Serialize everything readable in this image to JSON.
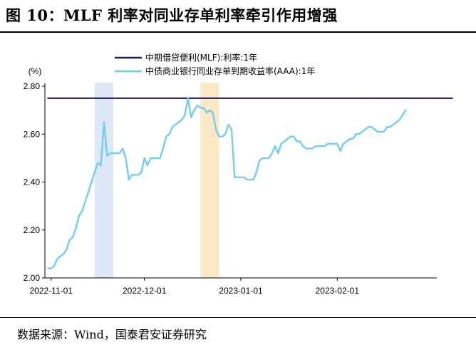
{
  "figure": {
    "title": "图 10：MLF 利率对同业存单利率牵引作用增强",
    "source": "数据来源：Wind，国泰君安证券研究"
  },
  "chart_data": {
    "type": "line",
    "ylabel": "(%)",
    "ylim": [
      2.0,
      2.8
    ],
    "yticks": [
      2.0,
      2.2,
      2.4,
      2.6,
      2.8
    ],
    "ytick_labels": [
      "2.00",
      "2.20",
      "2.40",
      "2.60",
      "2.80"
    ],
    "xticks": [
      "2022-11-01",
      "2022-12-01",
      "2023-01-01",
      "2023-02-01"
    ],
    "legend_position": "top",
    "highlight_bands": [
      {
        "from": "2022-11-15",
        "to": "2022-11-21",
        "color": "#dce8f6"
      },
      {
        "from": "2022-12-19",
        "to": "2022-12-25",
        "color": "#fbe8c4"
      }
    ],
    "series": [
      {
        "name": "中期借贷便利(MLF):利率:1年",
        "color": "#1a1f5e",
        "points": [
          [
            "2022-10-31",
            2.75
          ],
          [
            "2023-03-10",
            2.75
          ]
        ]
      },
      {
        "name": "中债商业银行同业存单到期收益率(AAA):1年",
        "color": "#72cdf2",
        "points": [
          [
            "2022-10-31",
            2.04
          ],
          [
            "2022-11-01",
            2.04
          ],
          [
            "2022-11-02",
            2.05
          ],
          [
            "2022-11-03",
            2.08
          ],
          [
            "2022-11-04",
            2.09
          ],
          [
            "2022-11-05",
            2.1
          ],
          [
            "2022-11-06",
            2.12
          ],
          [
            "2022-11-07",
            2.16
          ],
          [
            "2022-11-08",
            2.17
          ],
          [
            "2022-11-09",
            2.21
          ],
          [
            "2022-11-10",
            2.26
          ],
          [
            "2022-11-11",
            2.28
          ],
          [
            "2022-11-12",
            2.32
          ],
          [
            "2022-11-13",
            2.36
          ],
          [
            "2022-11-14",
            2.4
          ],
          [
            "2022-11-15",
            2.44
          ],
          [
            "2022-11-16",
            2.48
          ],
          [
            "2022-11-17",
            2.47
          ],
          [
            "2022-11-18",
            2.65
          ],
          [
            "2022-11-19",
            2.51
          ],
          [
            "2022-11-20",
            2.52
          ],
          [
            "2022-11-21",
            2.52
          ],
          [
            "2022-11-22",
            2.52
          ],
          [
            "2022-11-23",
            2.52
          ],
          [
            "2022-11-24",
            2.54
          ],
          [
            "2022-11-25",
            2.5
          ],
          [
            "2022-11-26",
            2.41
          ],
          [
            "2022-11-27",
            2.43
          ],
          [
            "2022-11-28",
            2.43
          ],
          [
            "2022-11-29",
            2.43
          ],
          [
            "2022-11-30",
            2.44
          ],
          [
            "2022-12-01",
            2.5
          ],
          [
            "2022-12-02",
            2.47
          ],
          [
            "2022-12-03",
            2.5
          ],
          [
            "2022-12-04",
            2.5
          ],
          [
            "2022-12-05",
            2.5
          ],
          [
            "2022-12-06",
            2.5
          ],
          [
            "2022-12-07",
            2.54
          ],
          [
            "2022-12-08",
            2.59
          ],
          [
            "2022-12-09",
            2.6
          ],
          [
            "2022-12-10",
            2.63
          ],
          [
            "2022-12-11",
            2.64
          ],
          [
            "2022-12-12",
            2.65
          ],
          [
            "2022-12-13",
            2.66
          ],
          [
            "2022-12-14",
            2.68
          ],
          [
            "2022-12-15",
            2.75
          ],
          [
            "2022-12-16",
            2.67
          ],
          [
            "2022-12-17",
            2.7
          ],
          [
            "2022-12-18",
            2.72
          ],
          [
            "2022-12-19",
            2.71
          ],
          [
            "2022-12-20",
            2.71
          ],
          [
            "2022-12-21",
            2.69
          ],
          [
            "2022-12-22",
            2.7
          ],
          [
            "2022-12-23",
            2.69
          ],
          [
            "2022-12-24",
            2.62
          ],
          [
            "2022-12-25",
            2.59
          ],
          [
            "2022-12-26",
            2.59
          ],
          [
            "2022-12-27",
            2.6
          ],
          [
            "2022-12-28",
            2.64
          ],
          [
            "2022-12-29",
            2.62
          ],
          [
            "2022-12-30",
            2.42
          ],
          [
            "2022-12-31",
            2.42
          ],
          [
            "2023-01-01",
            2.42
          ],
          [
            "2023-01-02",
            2.42
          ],
          [
            "2023-01-03",
            2.41
          ],
          [
            "2023-01-04",
            2.41
          ],
          [
            "2023-01-05",
            2.41
          ],
          [
            "2023-01-06",
            2.44
          ],
          [
            "2023-01-07",
            2.49
          ],
          [
            "2023-01-08",
            2.5
          ],
          [
            "2023-01-09",
            2.5
          ],
          [
            "2023-01-10",
            2.5
          ],
          [
            "2023-01-11",
            2.52
          ],
          [
            "2023-01-12",
            2.55
          ],
          [
            "2023-01-13",
            2.52
          ],
          [
            "2023-01-14",
            2.56
          ],
          [
            "2023-01-15",
            2.57
          ],
          [
            "2023-01-16",
            2.58
          ],
          [
            "2023-01-17",
            2.59
          ],
          [
            "2023-01-18",
            2.59
          ],
          [
            "2023-01-19",
            2.57
          ],
          [
            "2023-01-20",
            2.57
          ],
          [
            "2023-01-21",
            2.55
          ],
          [
            "2023-01-22",
            2.54
          ],
          [
            "2023-01-23",
            2.54
          ],
          [
            "2023-01-24",
            2.54
          ],
          [
            "2023-01-25",
            2.55
          ],
          [
            "2023-01-26",
            2.55
          ],
          [
            "2023-01-27",
            2.55
          ],
          [
            "2023-01-28",
            2.55
          ],
          [
            "2023-01-29",
            2.56
          ],
          [
            "2023-01-30",
            2.56
          ],
          [
            "2023-01-31",
            2.56
          ],
          [
            "2023-02-01",
            2.56
          ],
          [
            "2023-02-02",
            2.53
          ],
          [
            "2023-02-03",
            2.56
          ],
          [
            "2023-02-04",
            2.57
          ],
          [
            "2023-02-05",
            2.58
          ],
          [
            "2023-02-06",
            2.58
          ],
          [
            "2023-02-07",
            2.6
          ],
          [
            "2023-02-08",
            2.6
          ],
          [
            "2023-02-09",
            2.61
          ],
          [
            "2023-02-10",
            2.62
          ],
          [
            "2023-02-11",
            2.63
          ],
          [
            "2023-02-12",
            2.63
          ],
          [
            "2023-02-13",
            2.62
          ],
          [
            "2023-02-14",
            2.61
          ],
          [
            "2023-02-15",
            2.61
          ],
          [
            "2023-02-16",
            2.61
          ],
          [
            "2023-02-17",
            2.63
          ],
          [
            "2023-02-18",
            2.63
          ],
          [
            "2023-02-19",
            2.64
          ],
          [
            "2023-02-20",
            2.65
          ],
          [
            "2023-02-21",
            2.66
          ],
          [
            "2023-02-22",
            2.68
          ],
          [
            "2023-02-23",
            2.7
          ]
        ]
      }
    ]
  }
}
